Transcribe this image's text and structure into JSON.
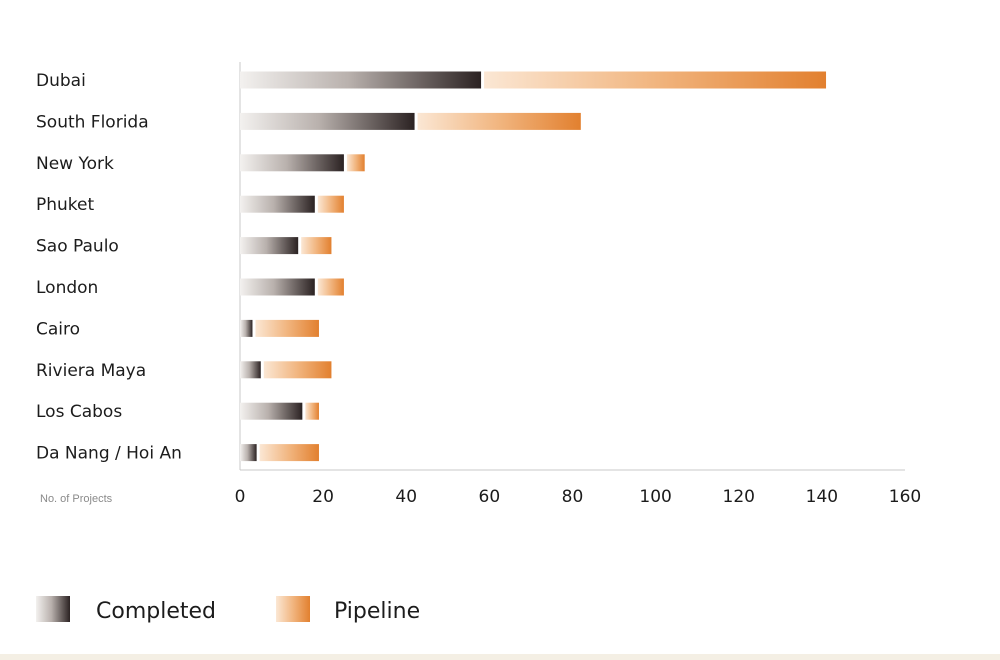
{
  "chart_data": {
    "type": "bar",
    "orientation": "horizontal",
    "stacked": true,
    "categories": [
      "Dubai",
      "South Florida",
      "New York",
      "Phuket",
      "Sao Paulo",
      "London",
      "Cairo",
      "Riviera Maya",
      "Los Cabos",
      "Da Nang / Hoi An"
    ],
    "series": [
      {
        "name": "Completed",
        "values": [
          58,
          42,
          25,
          18,
          14,
          18,
          3,
          5,
          15,
          4
        ],
        "color": "#2e2424"
      },
      {
        "name": "Pipeline",
        "values": [
          83,
          40,
          5,
          7,
          8,
          7,
          16,
          17,
          4,
          15
        ],
        "color": "#e8924a"
      }
    ],
    "xlabel": "No. of Projects",
    "xlim": [
      0,
      160
    ],
    "xticks": [
      0,
      20,
      40,
      60,
      80,
      100,
      120,
      140,
      160
    ],
    "grid": false,
    "legend_position": "bottom-left"
  }
}
